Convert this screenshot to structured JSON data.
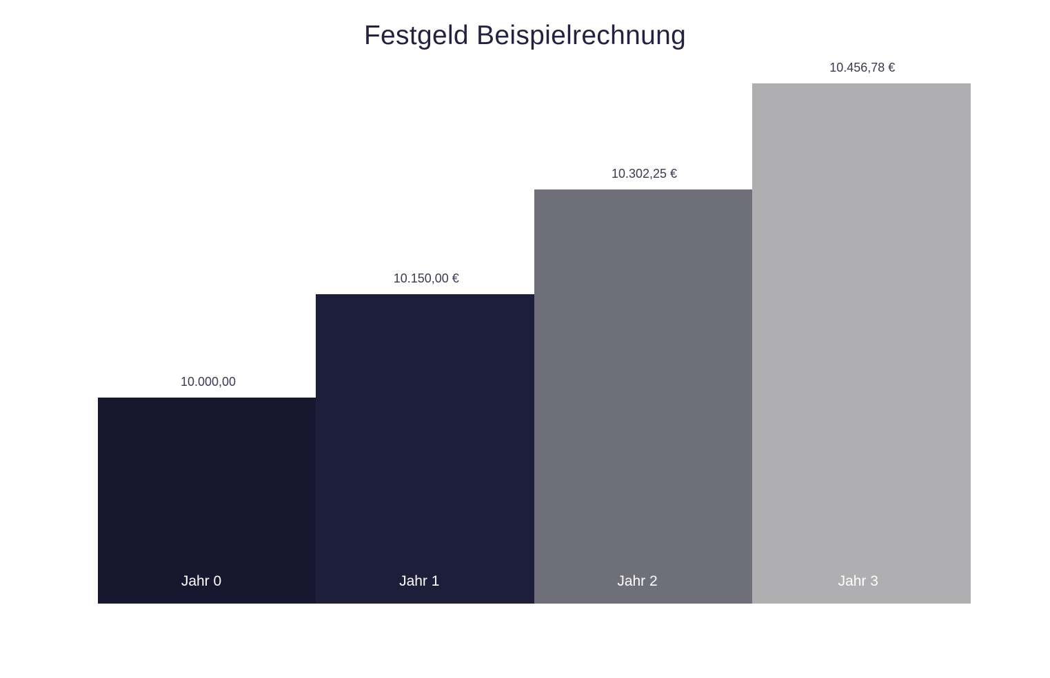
{
  "chart_data": {
    "type": "bar",
    "title": "Festgeld Beispielrechnung",
    "xlabel": "",
    "ylabel": "",
    "categories": [
      "Jahr 0",
      "Jahr 1",
      "Jahr 2",
      "Jahr 3"
    ],
    "values": [
      10000.0,
      10150.0,
      10302.25,
      10456.78
    ],
    "data_labels": [
      "10.000,00",
      "10.150,00 €",
      "10.302,25 €",
      "10.456,78 €"
    ],
    "ylim": [
      9701,
      10456.78
    ],
    "grid": false,
    "legend": "none",
    "colors": [
      "#171830",
      "#1d1e3a",
      "#6f6f79",
      "#afafb1"
    ],
    "category_label_color": "#ffffff",
    "data_label_color": "#3a3a52"
  }
}
